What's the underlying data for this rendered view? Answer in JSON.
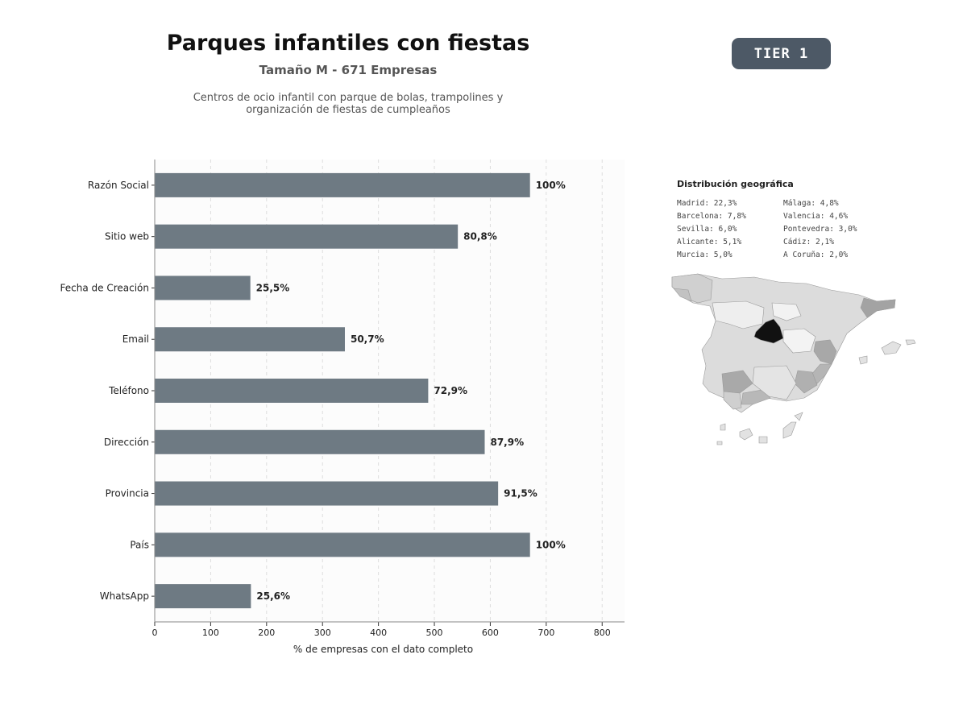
{
  "header": {
    "title": "Parques infantiles con fiestas",
    "subtitle": "Tamaño M - 671 Empresas",
    "description": "Centros de ocio infantil con parque de bolas, trampolines y organización de fiestas de cumpleaños",
    "tier": "TIER 1"
  },
  "chart_data": {
    "type": "bar",
    "orientation": "horizontal",
    "categories": [
      "Razón Social",
      "Sitio web",
      "Fecha de Creación",
      "Email",
      "Teléfono",
      "Dirección",
      "Provincia",
      "País",
      "WhatsApp"
    ],
    "values": [
      671,
      542,
      171,
      340,
      489,
      590,
      614,
      671,
      172
    ],
    "data_labels": [
      "100%",
      "80,8%",
      "25,5%",
      "50,7%",
      "72,9%",
      "87,9%",
      "91,5%",
      "100%",
      "25,6%"
    ],
    "xlabel": "% de empresas con el dato completo",
    "ylabel": "",
    "xlim": [
      0,
      840
    ],
    "xticks": [
      0,
      100,
      200,
      300,
      400,
      500,
      600,
      700,
      800
    ],
    "grid": "vertical dashed",
    "bar_color": "#6e7a83"
  },
  "geo": {
    "title": "Distribución geográfica",
    "items": [
      "Madrid: 22,3%",
      "Málaga: 4,8%",
      "Barcelona: 7,8%",
      "Valencia: 4,6%",
      "Sevilla: 6,0%",
      "Pontevedra: 3,0%",
      "Alicante: 5,1%",
      "Cádiz: 2,1%",
      "Murcia: 5,0%",
      "A Coruña: 2,0%"
    ]
  }
}
